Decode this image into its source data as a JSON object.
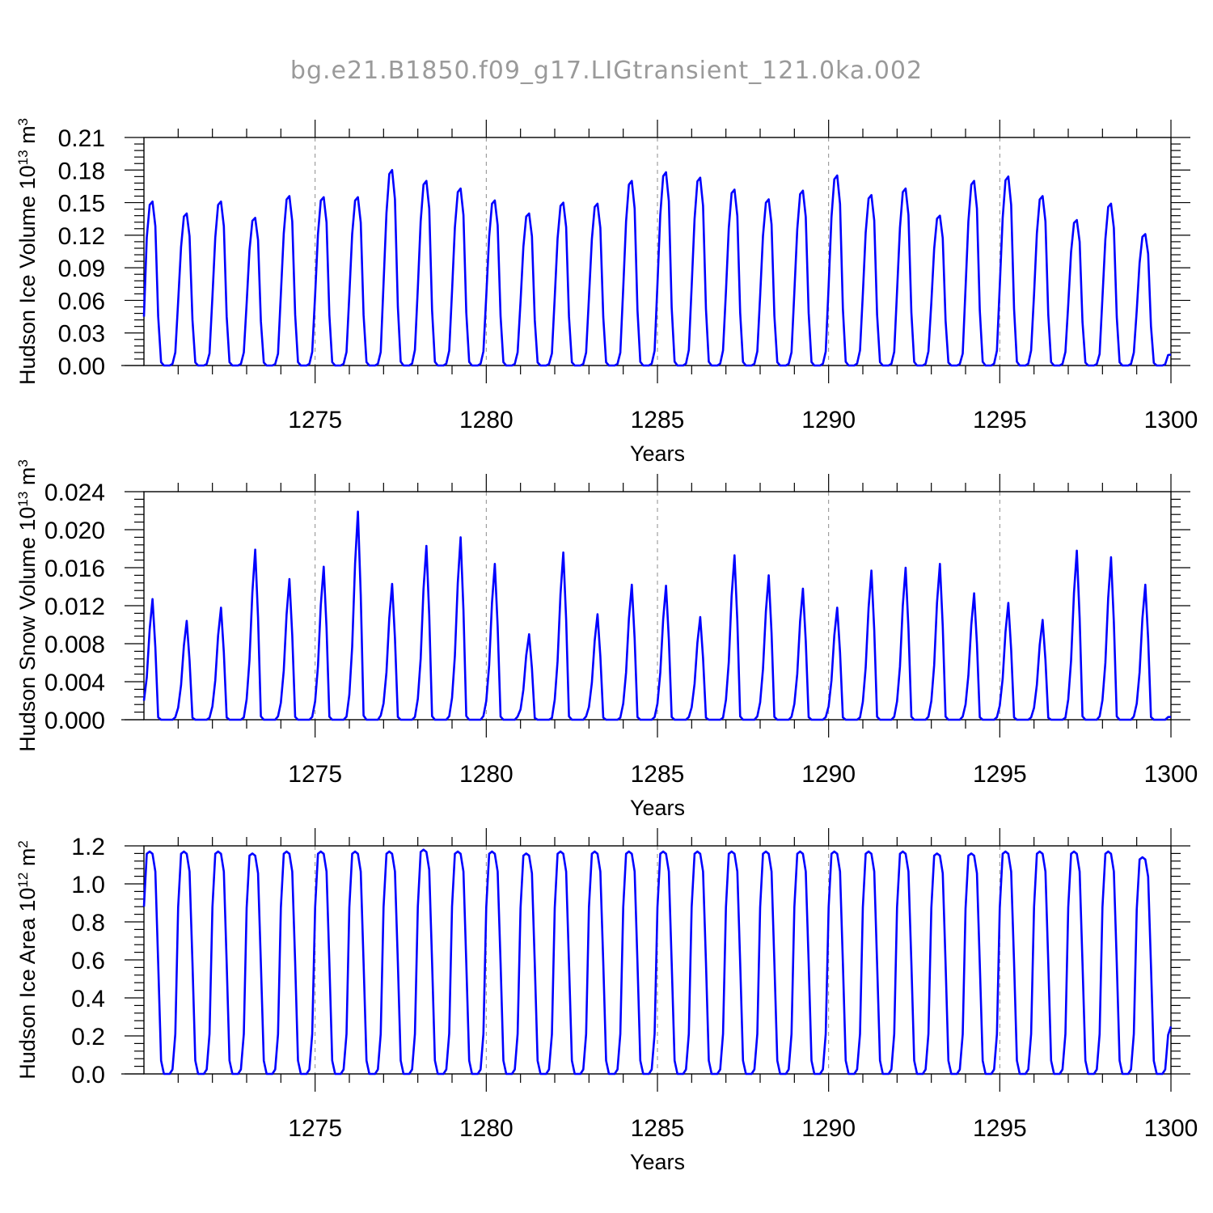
{
  "title": "bg.e21.B1850.f09_g17.LIGtransient_121.0ka.002",
  "chart_data": [
    {
      "type": "line",
      "panel": "ice-volume",
      "ylabel": "Hudson Ice Volume 10",
      "ylabel_exponent": "13",
      "ylabel_unit": " m",
      "ylabel_unit_exponent": "3",
      "xlabel": "Years",
      "xlim": [
        1270,
        1300
      ],
      "ylim": [
        0,
        0.21
      ],
      "xticks": [
        1275,
        1280,
        1285,
        1290,
        1295,
        1300
      ],
      "xtick_labels": [
        "1275",
        "1280",
        "1285",
        "1290",
        "1295",
        "1300"
      ],
      "yticks": [
        0,
        0.03,
        0.06,
        0.09,
        0.12,
        0.15,
        0.18,
        0.21
      ],
      "ytick_labels": [
        "0.00",
        "0.03",
        "0.06",
        "0.09",
        "0.12",
        "0.15",
        "0.18",
        "0.21"
      ],
      "grid_x": "dashed at major ticks",
      "series_color": "#0000ff",
      "start_value": 0.045,
      "end_value": 0.01,
      "annual_peaks": [
        0.151,
        0.14,
        0.151,
        0.136,
        0.156,
        0.155,
        0.155,
        0.18,
        0.17,
        0.163,
        0.152,
        0.14,
        0.15,
        0.149,
        0.17,
        0.178,
        0.173,
        0.162,
        0.153,
        0.161,
        0.175,
        0.157,
        0.163,
        0.138,
        0.17,
        0.174,
        0.156,
        0.134,
        0.149,
        0.121
      ]
    },
    {
      "type": "line",
      "panel": "snow-volume",
      "ylabel": "Hudson Snow Volume 10",
      "ylabel_exponent": "13",
      "ylabel_unit": " m",
      "ylabel_unit_exponent": "3",
      "xlabel": "Years",
      "xlim": [
        1270,
        1300
      ],
      "ylim": [
        0,
        0.024
      ],
      "xticks": [
        1275,
        1280,
        1285,
        1290,
        1295,
        1300
      ],
      "xtick_labels": [
        "1275",
        "1280",
        "1285",
        "1290",
        "1295",
        "1300"
      ],
      "yticks": [
        0,
        0.004,
        0.008,
        0.012,
        0.016,
        0.02,
        0.024
      ],
      "ytick_labels": [
        "0.000",
        "0.004",
        "0.008",
        "0.012",
        "0.016",
        "0.020",
        "0.024"
      ],
      "grid_x": "dashed at major ticks",
      "series_color": "#0000ff",
      "start_value": 0.002,
      "end_value": 0.0003,
      "annual_peaks": [
        0.0127,
        0.0104,
        0.0118,
        0.0179,
        0.0148,
        0.0161,
        0.0219,
        0.0143,
        0.0183,
        0.0192,
        0.0164,
        0.009,
        0.0176,
        0.0111,
        0.0142,
        0.0141,
        0.0108,
        0.0173,
        0.0152,
        0.0138,
        0.0118,
        0.0157,
        0.016,
        0.0164,
        0.0133,
        0.0123,
        0.0105,
        0.0178,
        0.0171,
        0.0142
      ]
    },
    {
      "type": "line",
      "panel": "ice-area",
      "ylabel": "Hudson Ice Area 10",
      "ylabel_exponent": "12",
      "ylabel_unit": " m",
      "ylabel_unit_exponent": "2",
      "xlabel": "Years",
      "xlim": [
        1270,
        1300
      ],
      "ylim": [
        0,
        1.2
      ],
      "xticks": [
        1275,
        1280,
        1285,
        1290,
        1295,
        1300
      ],
      "xtick_labels": [
        "1275",
        "1280",
        "1285",
        "1290",
        "1295",
        "1300"
      ],
      "yticks": [
        0,
        0.2,
        0.4,
        0.6,
        0.8,
        1.0,
        1.2
      ],
      "ytick_labels": [
        "0.0",
        "0.2",
        "0.4",
        "0.6",
        "0.8",
        "1.0",
        "1.2"
      ],
      "grid_x": "dashed at major ticks",
      "series_color": "#0000ff",
      "start_value": 0.88,
      "end_value": 0.25,
      "annual_peaks": [
        1.17,
        1.17,
        1.17,
        1.16,
        1.17,
        1.17,
        1.17,
        1.17,
        1.18,
        1.17,
        1.17,
        1.16,
        1.17,
        1.17,
        1.17,
        1.17,
        1.17,
        1.17,
        1.17,
        1.17,
        1.17,
        1.17,
        1.17,
        1.16,
        1.16,
        1.17,
        1.17,
        1.17,
        1.17,
        1.14
      ]
    }
  ]
}
